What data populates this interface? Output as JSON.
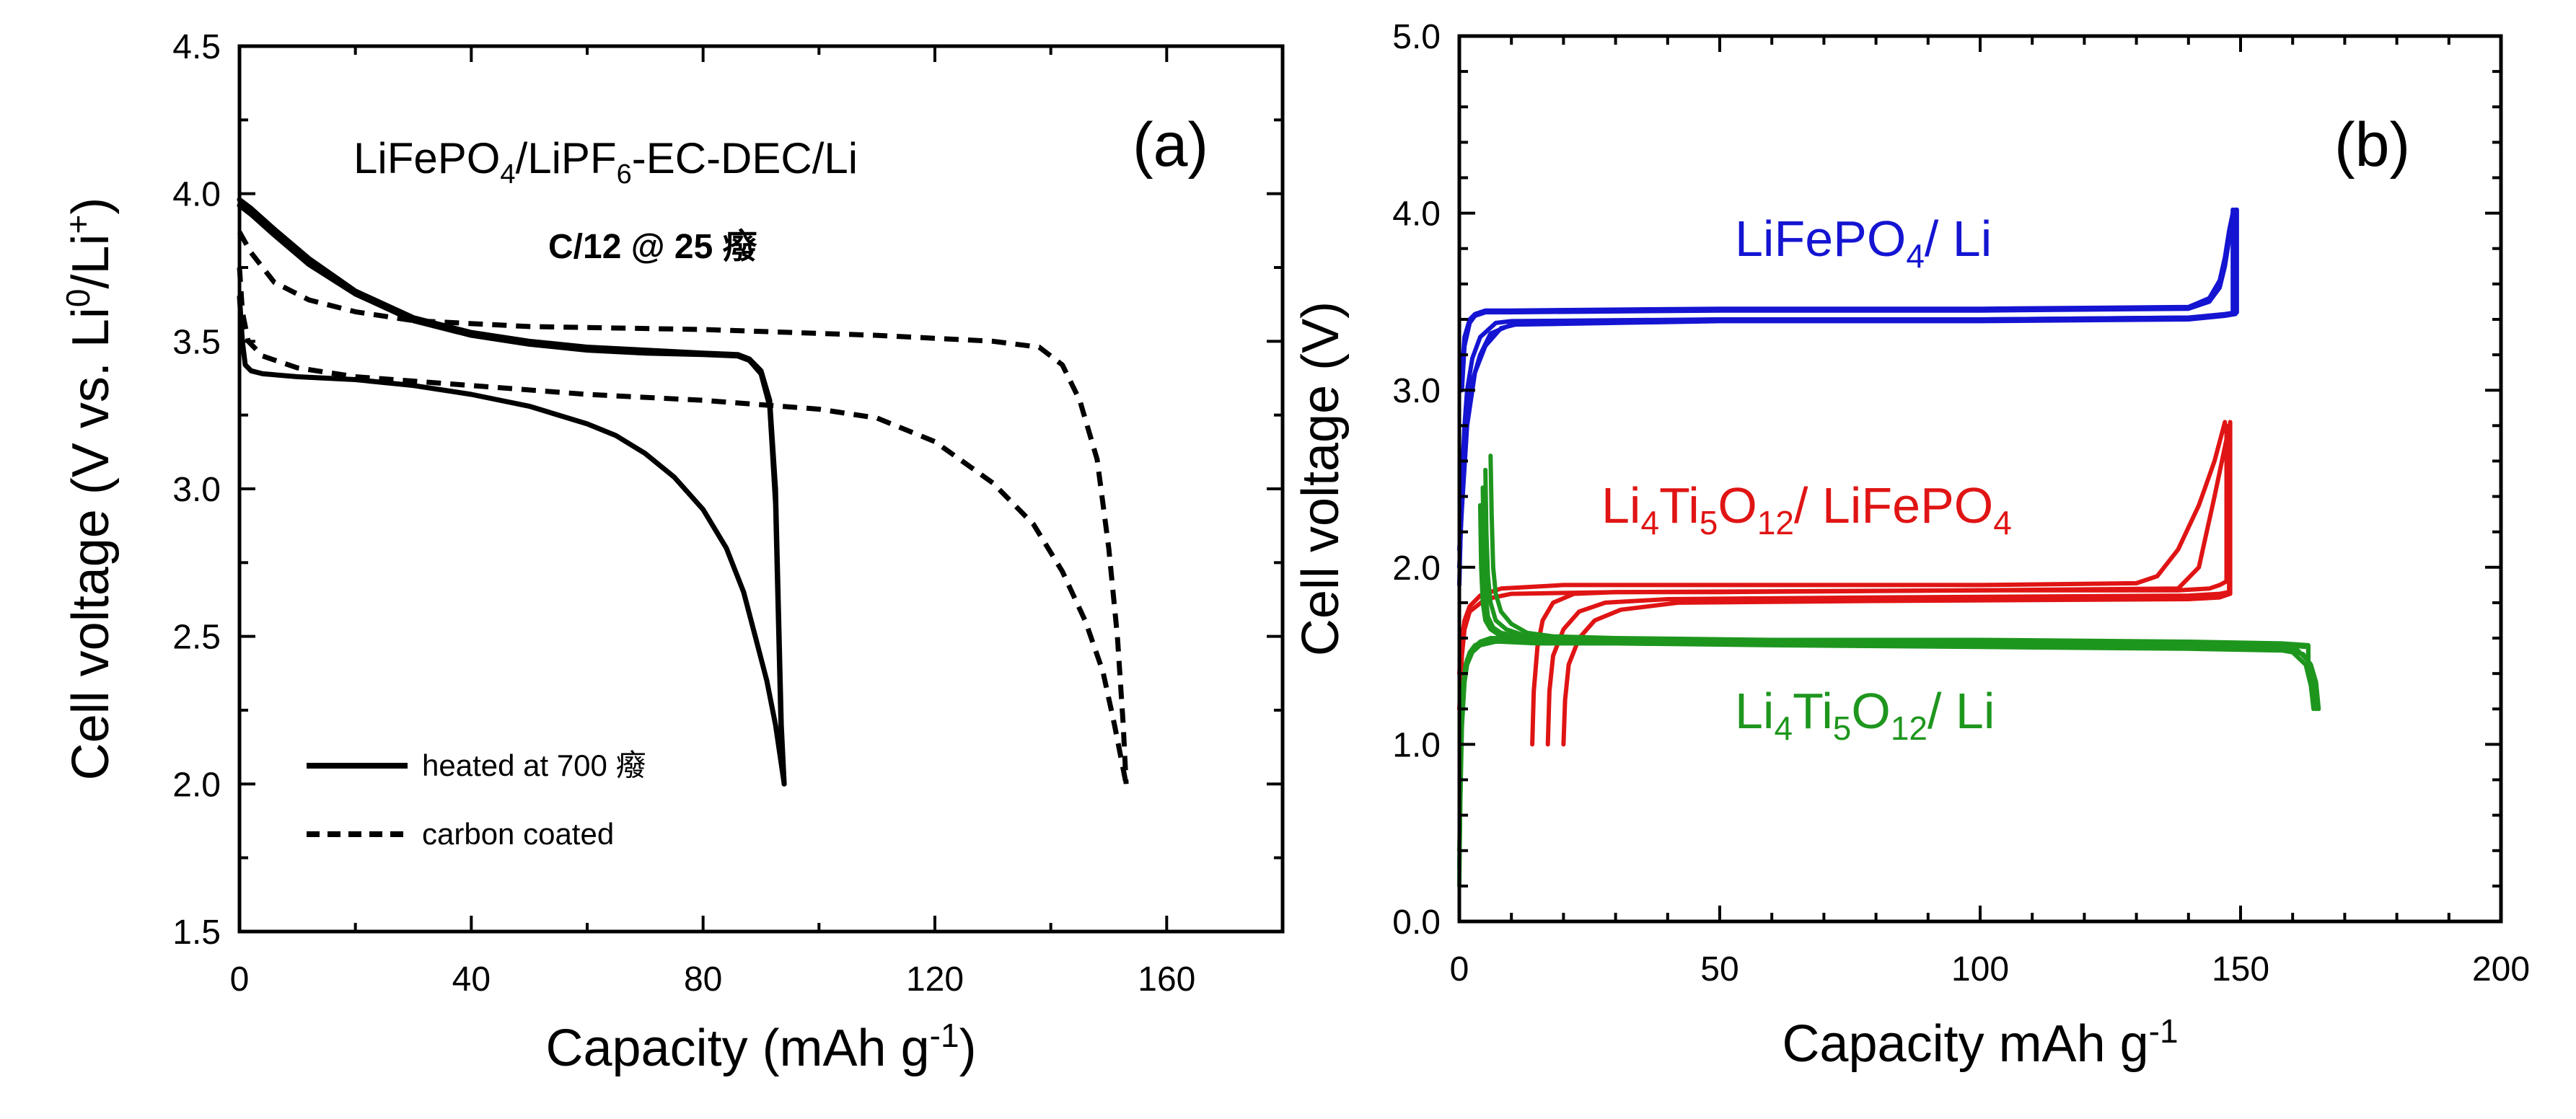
{
  "chart_data": [
    {
      "type": "line",
      "panel_label": "(a)",
      "title": "LiFePO4/LiPF6-EC-DEC/Li",
      "title_parts": {
        "a": "LiFePO",
        "a_sub": "4",
        "b": "/LiPF",
        "b_sub": "6",
        "c": "-EC-DEC/Li"
      },
      "subtitle": "C/12 @ 25 癈",
      "xlabel": "Capacity (mAh g-1)",
      "xlabel_parts": {
        "main": "Capacity (mAh g",
        "sup": "-1",
        "end": ")"
      },
      "ylabel": "Cell voltage (V vs. Li0/Li+)",
      "ylabel_parts": {
        "main": "Cell voltage (V vs. Li",
        "sup1": "0",
        "mid": "/Li",
        "sup2": "+",
        "end": ")"
      },
      "xlim": [
        0,
        180
      ],
      "ylim": [
        1.5,
        4.5
      ],
      "xticks": [
        0,
        40,
        80,
        120,
        160
      ],
      "xtick_labels": [
        "0",
        "40",
        "80",
        "120",
        "160"
      ],
      "yticks": [
        1.5,
        2.0,
        2.5,
        3.0,
        3.5,
        4.0,
        4.5
      ],
      "ytick_labels": [
        "1.5",
        "2.0",
        "2.5",
        "3.0",
        "3.5",
        "4.0",
        "4.5"
      ],
      "grid": false,
      "legend_position": "bottom-left",
      "series": [
        {
          "name": "heated at 700 癈",
          "style": "solid",
          "color": "#000000",
          "segments": [
            {
              "x": [
                0,
                2,
                6,
                12,
                20,
                30,
                40,
                50,
                60,
                70,
                80,
                86,
                88,
                90,
                91.5,
                92.5,
                93,
                93.5,
                94
              ],
              "y": [
                3.98,
                3.95,
                3.88,
                3.78,
                3.67,
                3.58,
                3.53,
                3.5,
                3.48,
                3.47,
                3.46,
                3.455,
                3.44,
                3.4,
                3.3,
                3.0,
                2.6,
                2.2,
                2.0
              ]
            },
            {
              "x": [
                0,
                0.5,
                1,
                2,
                4,
                10,
                20,
                30,
                40,
                50,
                60,
                65,
                70,
                75,
                80,
                84,
                87,
                89,
                91,
                92.5,
                94
              ],
              "y": [
                3.65,
                3.5,
                3.42,
                3.4,
                3.39,
                3.38,
                3.37,
                3.35,
                3.32,
                3.28,
                3.22,
                3.18,
                3.12,
                3.04,
                2.93,
                2.8,
                2.65,
                2.5,
                2.35,
                2.2,
                2.0
              ]
            },
            {
              "x": [
                0,
                2,
                6,
                12,
                20,
                30,
                40,
                50,
                60,
                70,
                80,
                86,
                88,
                90,
                91.5,
                92.5,
                93,
                93.5,
                94
              ],
              "y": [
                3.96,
                3.93,
                3.86,
                3.76,
                3.66,
                3.57,
                3.52,
                3.49,
                3.47,
                3.46,
                3.455,
                3.45,
                3.435,
                3.39,
                3.28,
                2.95,
                2.55,
                2.15,
                2.0
              ]
            }
          ]
        },
        {
          "name": "carbon coated",
          "style": "dashed",
          "color": "#000000",
          "segments": [
            {
              "x": [
                0,
                2,
                6,
                12,
                20,
                30,
                50,
                80,
                110,
                130,
                138,
                142,
                145,
                148,
                150,
                151.5,
                152.5,
                153
              ],
              "y": [
                3.87,
                3.8,
                3.7,
                3.64,
                3.6,
                3.57,
                3.55,
                3.54,
                3.52,
                3.5,
                3.48,
                3.42,
                3.3,
                3.1,
                2.8,
                2.5,
                2.2,
                2.0
              ]
            },
            {
              "x": [
                0,
                0.5,
                1.5,
                4,
                10,
                20,
                40,
                60,
                80,
                100,
                110,
                120,
                130,
                137,
                142,
                146,
                149,
                151,
                153
              ],
              "y": [
                3.75,
                3.6,
                3.5,
                3.45,
                3.41,
                3.38,
                3.35,
                3.32,
                3.3,
                3.27,
                3.24,
                3.16,
                3.02,
                2.88,
                2.72,
                2.55,
                2.38,
                2.2,
                2.0
              ]
            }
          ]
        }
      ]
    },
    {
      "type": "line",
      "panel_label": "(b)",
      "title": "",
      "xlabel": "Capacity mAh g-1",
      "xlabel_parts": {
        "main": "Capacity mAh g",
        "sup": "-1",
        "end": ""
      },
      "ylabel": "Cell voltage (V)",
      "xlim": [
        0,
        200
      ],
      "ylim": [
        0,
        5
      ],
      "xticks": [
        0,
        50,
        100,
        150,
        200
      ],
      "xtick_labels": [
        "0",
        "50",
        "100",
        "150",
        "200"
      ],
      "yticks": [
        0,
        1,
        2,
        3,
        4,
        5
      ],
      "ytick_labels": [
        "0.0",
        "1.0",
        "2.0",
        "3.0",
        "4.0",
        "5.0"
      ],
      "grid": false,
      "series": [
        {
          "name": "LiFePO4/ Li",
          "label_parts": {
            "a": "LiFePO",
            "a_sub": "4",
            "b": "/ Li"
          },
          "color": "#1414d2",
          "segments": [
            {
              "x": [
                0.5,
                1,
                2,
                3,
                5,
                10,
                50,
                100,
                140,
                144,
                146,
                147,
                147.8,
                148.5
              ],
              "y": [
                3.1,
                3.3,
                3.4,
                3.43,
                3.45,
                3.45,
                3.46,
                3.46,
                3.47,
                3.52,
                3.62,
                3.75,
                3.9,
                4.0
              ]
            },
            {
              "x": [
                0.5,
                1,
                2,
                3,
                5,
                10,
                50,
                100,
                140,
                144,
                146,
                147,
                147.8,
                148.5
              ],
              "y": [
                3.0,
                3.25,
                3.38,
                3.42,
                3.44,
                3.44,
                3.45,
                3.45,
                3.46,
                3.5,
                3.58,
                3.7,
                3.85,
                4.0
              ]
            },
            {
              "x": [
                0,
                0.5,
                1,
                1.5,
                2.5,
                4,
                7,
                10,
                50,
                100,
                140,
                146,
                148.5,
                148.5
              ],
              "y": [
                1.9,
                2.5,
                2.8,
                3.0,
                3.18,
                3.3,
                3.38,
                3.39,
                3.4,
                3.4,
                3.41,
                3.42,
                3.43,
                4.02
              ]
            },
            {
              "x": [
                0,
                1,
                2,
                4,
                6,
                10,
                50,
                100,
                140,
                147,
                149,
                149
              ],
              "y": [
                2.0,
                2.7,
                3.0,
                3.2,
                3.32,
                3.37,
                3.39,
                3.39,
                3.4,
                3.42,
                3.43,
                4.02
              ]
            },
            {
              "x": [
                0,
                1.5,
                3,
                5,
                8,
                12,
                50,
                100,
                140,
                147,
                149.3,
                149.3
              ],
              "y": [
                2.1,
                2.8,
                3.1,
                3.25,
                3.35,
                3.38,
                3.4,
                3.4,
                3.41,
                3.43,
                3.44,
                4.02
              ]
            }
          ]
        },
        {
          "name": "Li4Ti5O12/ LiFePO4",
          "label_parts": {
            "a": "Li",
            "a_sub": "4",
            "b": "Ti",
            "b_sub": "5",
            "c": "O",
            "c_sub": "12",
            "d": "/ LiFePO",
            "d_sub": "4"
          },
          "color": "#e01414",
          "segments": [
            {
              "x": [
                0,
                0.5,
                1,
                2,
                4,
                8,
                20,
                50,
                100,
                130,
                134,
                138,
                142,
                145,
                147
              ],
              "y": [
                1.4,
                1.6,
                1.7,
                1.78,
                1.84,
                1.88,
                1.9,
                1.9,
                1.9,
                1.91,
                1.95,
                2.1,
                2.35,
                2.6,
                2.82
              ]
            },
            {
              "x": [
                14,
                14.3,
                15,
                16,
                18,
                22,
                30,
                50,
                100,
                138,
                144,
                146,
                147.3,
                147.3
              ],
              "y": [
                1.0,
                1.3,
                1.55,
                1.7,
                1.8,
                1.85,
                1.86,
                1.86,
                1.87,
                1.87,
                1.88,
                1.9,
                1.92,
                2.8
              ]
            },
            {
              "x": [
                17,
                17.3,
                18,
                20,
                23,
                28,
                40,
                80,
                140,
                146,
                147.8,
                147.8
              ],
              "y": [
                1.0,
                1.3,
                1.5,
                1.65,
                1.75,
                1.8,
                1.82,
                1.83,
                1.84,
                1.85,
                1.86,
                2.8
              ]
            },
            {
              "x": [
                20,
                20.3,
                21,
                23,
                26,
                31,
                42,
                80,
                140,
                146,
                148,
                148
              ],
              "y": [
                1.0,
                1.25,
                1.45,
                1.6,
                1.7,
                1.76,
                1.8,
                1.81,
                1.82,
                1.83,
                1.85,
                2.82
              ]
            },
            {
              "x": [
                0,
                0.5,
                1,
                2,
                5,
                10,
                30,
                100,
                138,
                142,
                145,
                147.5
              ],
              "y": [
                1.2,
                1.5,
                1.65,
                1.75,
                1.82,
                1.85,
                1.86,
                1.87,
                1.88,
                2.0,
                2.4,
                2.75
              ]
            }
          ]
        },
        {
          "name": "Li4Ti5O12/ Li",
          "label_parts": {
            "a": "Li",
            "a_sub": "4",
            "b": "Ti",
            "b_sub": "5",
            "c": "O",
            "c_sub": "12",
            "d": "/ Li"
          },
          "color": "#1e961e",
          "segments": [
            {
              "x": [
                0,
                0.2,
                0.5,
                0.8,
                1.2,
                2,
                3,
                5,
                8,
                15,
                30,
                60,
                100,
                140,
                158,
                162,
                163.5,
                164.5,
                165
              ],
              "y": [
                0.2,
                0.8,
                1.2,
                1.35,
                1.45,
                1.52,
                1.56,
                1.58,
                1.58,
                1.57,
                1.57,
                1.56,
                1.55,
                1.54,
                1.53,
                1.51,
                1.45,
                1.35,
                1.2
              ]
            },
            {
              "x": [
                0,
                0.3,
                0.6,
                1,
                1.5,
                2.5,
                4,
                6,
                10,
                20,
                50,
                100,
                140,
                157,
                161,
                163,
                164,
                164.5
              ],
              "y": [
                0.3,
                0.9,
                1.25,
                1.4,
                1.48,
                1.54,
                1.58,
                1.6,
                1.6,
                1.59,
                1.58,
                1.57,
                1.56,
                1.55,
                1.53,
                1.47,
                1.35,
                1.2
              ]
            },
            {
              "x": [
                0,
                0.5,
                1,
                1.5,
                2.5,
                4,
                7,
                12,
                25,
                50,
                100,
                140,
                156,
                160,
                162.5,
                163.5,
                164
              ],
              "y": [
                0.4,
                1.1,
                1.35,
                1.45,
                1.52,
                1.56,
                1.58,
                1.59,
                1.58,
                1.58,
                1.57,
                1.56,
                1.55,
                1.52,
                1.45,
                1.33,
                1.2
              ]
            },
            {
              "x": [
                6,
                6.2,
                6.5,
                7,
                8,
                10,
                13,
                18,
                30,
                60,
                100,
                140,
                158,
                163,
                163
              ],
              "y": [
                2.63,
                2.3,
                2.0,
                1.85,
                1.75,
                1.68,
                1.63,
                1.61,
                1.6,
                1.59,
                1.59,
                1.58,
                1.57,
                1.56,
                1.5
              ]
            },
            {
              "x": [
                5,
                5.2,
                5.5,
                6,
                7,
                9,
                12,
                17,
                30,
                60,
                100,
                140,
                158,
                163,
                163
              ],
              "y": [
                2.55,
                2.2,
                1.95,
                1.8,
                1.7,
                1.65,
                1.62,
                1.6,
                1.59,
                1.58,
                1.58,
                1.57,
                1.56,
                1.55,
                1.48
              ]
            },
            {
              "x": [
                4.5,
                4.7,
                5,
                5.5,
                6.5,
                8,
                11,
                16,
                30,
                60,
                100,
                140,
                158,
                163,
                163
              ],
              "y": [
                2.45,
                2.1,
                1.85,
                1.72,
                1.66,
                1.63,
                1.61,
                1.6,
                1.59,
                1.58,
                1.58,
                1.57,
                1.56,
                1.55,
                1.45
              ]
            },
            {
              "x": [
                4,
                4.2,
                4.5,
                5,
                6,
                7.5,
                10,
                15,
                30,
                60,
                100,
                140,
                158,
                163,
                163
              ],
              "y": [
                2.35,
                2.0,
                1.8,
                1.7,
                1.65,
                1.62,
                1.6,
                1.6,
                1.59,
                1.58,
                1.58,
                1.57,
                1.56,
                1.55,
                1.42
              ]
            }
          ]
        }
      ]
    }
  ]
}
